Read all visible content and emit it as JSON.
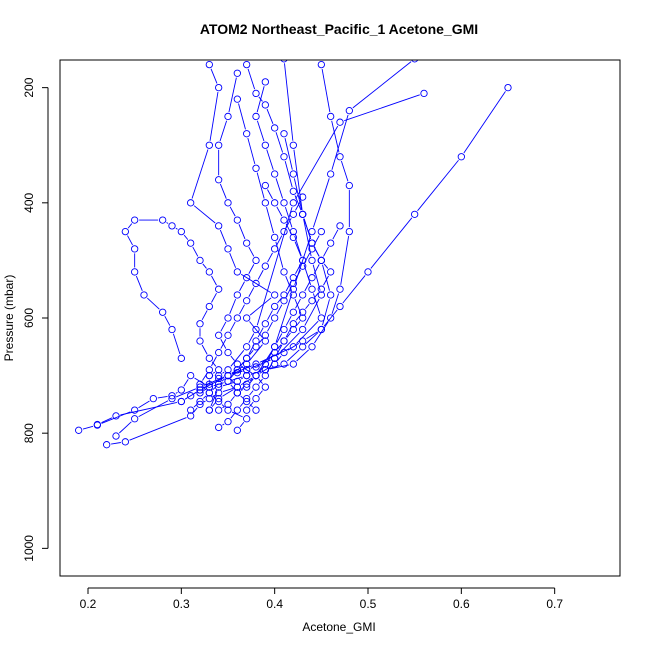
{
  "chart_data": {
    "type": "line",
    "title": "ATOM2 Northeast_Pacific_1 Acetone_GMI",
    "xlabel": "Acetone_GMI",
    "ylabel": "Pressure (mbar)",
    "xlim": [
      0.17,
      0.77
    ],
    "ylim": [
      1048,
      152
    ],
    "y_reversed": true,
    "xticks": [
      0.2,
      0.3,
      0.4,
      0.5,
      0.6,
      0.7
    ],
    "yticks": [
      200,
      400,
      600,
      800,
      1000
    ],
    "marker": "open-circle",
    "color": "#0000ff",
    "grid": false,
    "series": [
      {
        "x": [
          0.33,
          0.34,
          0.36,
          0.35,
          0.37,
          0.39,
          0.37,
          0.4,
          0.36,
          0.35,
          0.34,
          0.31,
          0.33,
          0.34,
          0.33
        ],
        "y": [
          760,
          740,
          720,
          700,
          680,
          640,
          600,
          560,
          520,
          480,
          440,
          400,
          300,
          200,
          160
        ]
      },
      {
        "x": [
          0.19,
          0.21,
          0.25,
          0.27,
          0.29,
          0.3,
          0.31,
          0.33,
          0.33,
          0.34,
          0.35,
          0.37,
          0.38,
          0.42,
          0.47,
          0.56
        ],
        "y": [
          795,
          786,
          760,
          740,
          735,
          725,
          700,
          720,
          700,
          700,
          690,
          650,
          620,
          400,
          260,
          210
        ]
      },
      {
        "x": [
          0.22,
          0.24,
          0.31,
          0.32,
          0.33,
          0.34,
          0.36,
          0.38,
          0.4,
          0.42,
          0.44,
          0.46,
          0.48,
          0.55
        ],
        "y": [
          820,
          815,
          770,
          750,
          740,
          730,
          720,
          700,
          650,
          550,
          450,
          350,
          240,
          150
        ]
      },
      {
        "x": [
          0.21,
          0.23,
          0.3,
          0.32,
          0.35,
          0.38,
          0.42,
          0.45,
          0.44,
          0.43,
          0.42,
          0.41,
          0.4,
          0.39,
          0.38,
          0.39
        ],
        "y": [
          785,
          770,
          745,
          725,
          700,
          680,
          650,
          600,
          550,
          500,
          450,
          400,
          350,
          300,
          250,
          190
        ]
      },
      {
        "x": [
          0.23,
          0.25,
          0.29,
          0.32,
          0.35,
          0.37,
          0.4,
          0.43,
          0.45,
          0.44,
          0.43,
          0.42,
          0.41
        ],
        "y": [
          805,
          775,
          740,
          720,
          700,
          690,
          670,
          620,
          560,
          500,
          420,
          300,
          150
        ]
      },
      {
        "x": [
          0.33,
          0.34,
          0.36,
          0.37,
          0.39,
          0.42,
          0.44,
          0.46,
          0.47,
          0.48,
          0.48,
          0.47,
          0.46,
          0.45
        ],
        "y": [
          760,
          720,
          710,
          700,
          690,
          680,
          650,
          600,
          550,
          450,
          370,
          320,
          250,
          160
        ]
      },
      {
        "x": [
          0.34,
          0.35,
          0.36,
          0.37,
          0.38,
          0.4,
          0.41,
          0.43,
          0.45,
          0.46,
          0.45,
          0.44,
          0.43,
          0.42,
          0.41,
          0.4,
          0.39,
          0.38,
          0.37
        ],
        "y": [
          760,
          750,
          730,
          715,
          700,
          680,
          660,
          640,
          620,
          560,
          500,
          470,
          420,
          380,
          320,
          270,
          230,
          210,
          160
        ]
      },
      {
        "x": [
          0.33,
          0.34,
          0.33,
          0.32,
          0.32,
          0.33,
          0.34,
          0.33,
          0.32,
          0.31,
          0.3,
          0.29,
          0.28,
          0.25,
          0.24,
          0.25,
          0.25,
          0.26,
          0.28,
          0.29,
          0.3
        ],
        "y": [
          700,
          690,
          670,
          640,
          610,
          580,
          550,
          520,
          500,
          470,
          450,
          440,
          430,
          430,
          450,
          480,
          520,
          560,
          590,
          620,
          670
        ]
      },
      {
        "x": [
          0.37,
          0.38,
          0.39,
          0.38,
          0.36,
          0.35,
          0.34,
          0.35,
          0.36,
          0.37,
          0.38,
          0.37,
          0.36,
          0.35,
          0.34,
          0.34,
          0.35,
          0.36
        ],
        "y": [
          760,
          740,
          720,
          700,
          680,
          660,
          630,
          600,
          560,
          530,
          500,
          470,
          430,
          400,
          360,
          300,
          250,
          175
        ]
      },
      {
        "x": [
          0.34,
          0.35,
          0.36,
          0.37,
          0.38,
          0.39,
          0.4,
          0.41,
          0.42,
          0.43,
          0.44,
          0.45,
          0.46,
          0.45,
          0.44,
          0.43,
          0.42,
          0.41
        ],
        "y": [
          790,
          780,
          760,
          740,
          720,
          700,
          670,
          640,
          610,
          590,
          570,
          550,
          520,
          500,
          470,
          420,
          350,
          280
        ]
      },
      {
        "x": [
          0.36,
          0.37,
          0.35,
          0.34,
          0.33,
          0.32,
          0.33,
          0.34,
          0.35,
          0.36,
          0.37,
          0.38,
          0.39,
          0.4,
          0.41,
          0.42,
          0.43
        ],
        "y": [
          795,
          775,
          760,
          745,
          730,
          715,
          690,
          660,
          630,
          600,
          570,
          540,
          510,
          480,
          450,
          420,
          390
        ]
      },
      {
        "x": [
          0.3,
          0.31,
          0.32,
          0.33,
          0.34,
          0.35,
          0.36,
          0.37,
          0.38,
          0.39,
          0.4,
          0.41,
          0.42,
          0.43,
          0.44,
          0.45,
          0.46,
          0.47
        ],
        "y": [
          745,
          735,
          725,
          715,
          705,
          700,
          695,
          690,
          685,
          680,
          650,
          620,
          590,
          560,
          530,
          500,
          470,
          440
        ]
      },
      {
        "x": [
          0.31,
          0.32,
          0.33,
          0.34,
          0.35,
          0.36,
          0.37,
          0.38,
          0.39,
          0.4,
          0.41,
          0.42,
          0.43,
          0.42,
          0.41,
          0.4,
          0.39
        ],
        "y": [
          760,
          745,
          730,
          715,
          700,
          690,
          670,
          640,
          610,
          580,
          560,
          530,
          500,
          460,
          430,
          400,
          370
        ]
      },
      {
        "x": [
          0.38,
          0.37,
          0.36,
          0.35,
          0.36,
          0.37,
          0.38,
          0.39,
          0.4,
          0.41,
          0.42,
          0.43,
          0.44,
          0.45
        ],
        "y": [
          760,
          745,
          730,
          710,
          690,
          670,
          650,
          630,
          600,
          570,
          540,
          510,
          480,
          450
        ]
      },
      {
        "x": [
          0.32,
          0.33,
          0.35,
          0.37,
          0.39,
          0.41,
          0.43,
          0.45,
          0.47,
          0.5,
          0.55,
          0.6,
          0.65
        ],
        "y": [
          730,
          720,
          710,
          700,
          690,
          680,
          650,
          620,
          580,
          520,
          420,
          320,
          200
        ]
      },
      {
        "x": [
          0.36,
          0.37,
          0.38,
          0.39,
          0.4,
          0.41,
          0.42,
          0.43,
          0.42,
          0.41,
          0.4,
          0.39,
          0.38,
          0.37,
          0.36
        ],
        "y": [
          730,
          720,
          700,
          680,
          660,
          640,
          620,
          600,
          560,
          520,
          460,
          400,
          340,
          280,
          220
        ]
      }
    ]
  }
}
